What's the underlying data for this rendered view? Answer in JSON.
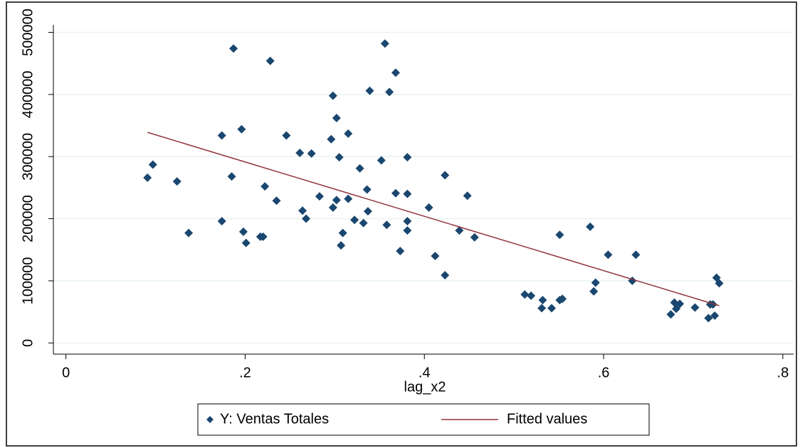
{
  "chart_data": {
    "type": "scatter",
    "x_label": "lag_x2",
    "xlim": [
      -0.014,
      0.812
    ],
    "ylim": [
      -18000,
      512000
    ],
    "xticks": [
      0,
      {
        "value": 0.2,
        "label": ".2"
      },
      {
        "value": 0.4,
        "label": ".4"
      },
      {
        "value": 0.6,
        "label": ".6"
      },
      {
        "value": 0.8,
        "label": ".8"
      }
    ],
    "yticks": [
      0,
      100000,
      200000,
      300000,
      400000,
      500000
    ],
    "grid": true,
    "legend": "bottom",
    "series": [
      {
        "name": "Y: Ventas Totales",
        "color": "#1a476f",
        "type": "scatter",
        "x": [
          0.091,
          0.097,
          0.124,
          0.137,
          0.174,
          0.174,
          0.187,
          0.185,
          0.196,
          0.198,
          0.201,
          0.217,
          0.22,
          0.222,
          0.228,
          0.235,
          0.246,
          0.261,
          0.264,
          0.268,
          0.274,
          0.283,
          0.296,
          0.298,
          0.298,
          0.302,
          0.302,
          0.305,
          0.307,
          0.309,
          0.315,
          0.315,
          0.322,
          0.328,
          0.332,
          0.336,
          0.337,
          0.339,
          0.352,
          0.356,
          0.358,
          0.361,
          0.368,
          0.368,
          0.373,
          0.381,
          0.381,
          0.381,
          0.381,
          0.405,
          0.412,
          0.423,
          0.423,
          0.439,
          0.448,
          0.456,
          0.512,
          0.519,
          0.532,
          0.531,
          0.542,
          0.551,
          0.554,
          0.551,
          0.585,
          0.589,
          0.591,
          0.605,
          0.632,
          0.636,
          0.675,
          0.679,
          0.681,
          0.685,
          0.702,
          0.717,
          0.719,
          0.722,
          0.724,
          0.726,
          0.729
        ],
        "values": [
          266000,
          287000,
          260000,
          177000,
          334000,
          196000,
          474000,
          268000,
          344000,
          179000,
          161000,
          171000,
          171000,
          252000,
          454000,
          229000,
          334000,
          306000,
          213000,
          200000,
          305000,
          236000,
          328000,
          398000,
          218000,
          362000,
          230000,
          299000,
          157000,
          177000,
          337000,
          232000,
          198000,
          281000,
          193000,
          247000,
          212000,
          406000,
          294000,
          482000,
          190000,
          404000,
          435000,
          241000,
          148000,
          299000,
          240000,
          196000,
          181000,
          218000,
          140000,
          270000,
          109000,
          181000,
          237000,
          170000,
          78000,
          76000,
          69000,
          56000,
          56000,
          69000,
          71000,
          174000,
          187000,
          83000,
          97000,
          142000,
          100000,
          142000,
          46000,
          65000,
          55000,
          63000,
          57000,
          40000,
          62000,
          62000,
          44000,
          105000,
          96000
        ]
      },
      {
        "name": "Fitted values",
        "color": "#90353b",
        "type": "line",
        "x": [
          0.091,
          0.729
        ],
        "values": [
          339000,
          60000
        ]
      }
    ]
  }
}
